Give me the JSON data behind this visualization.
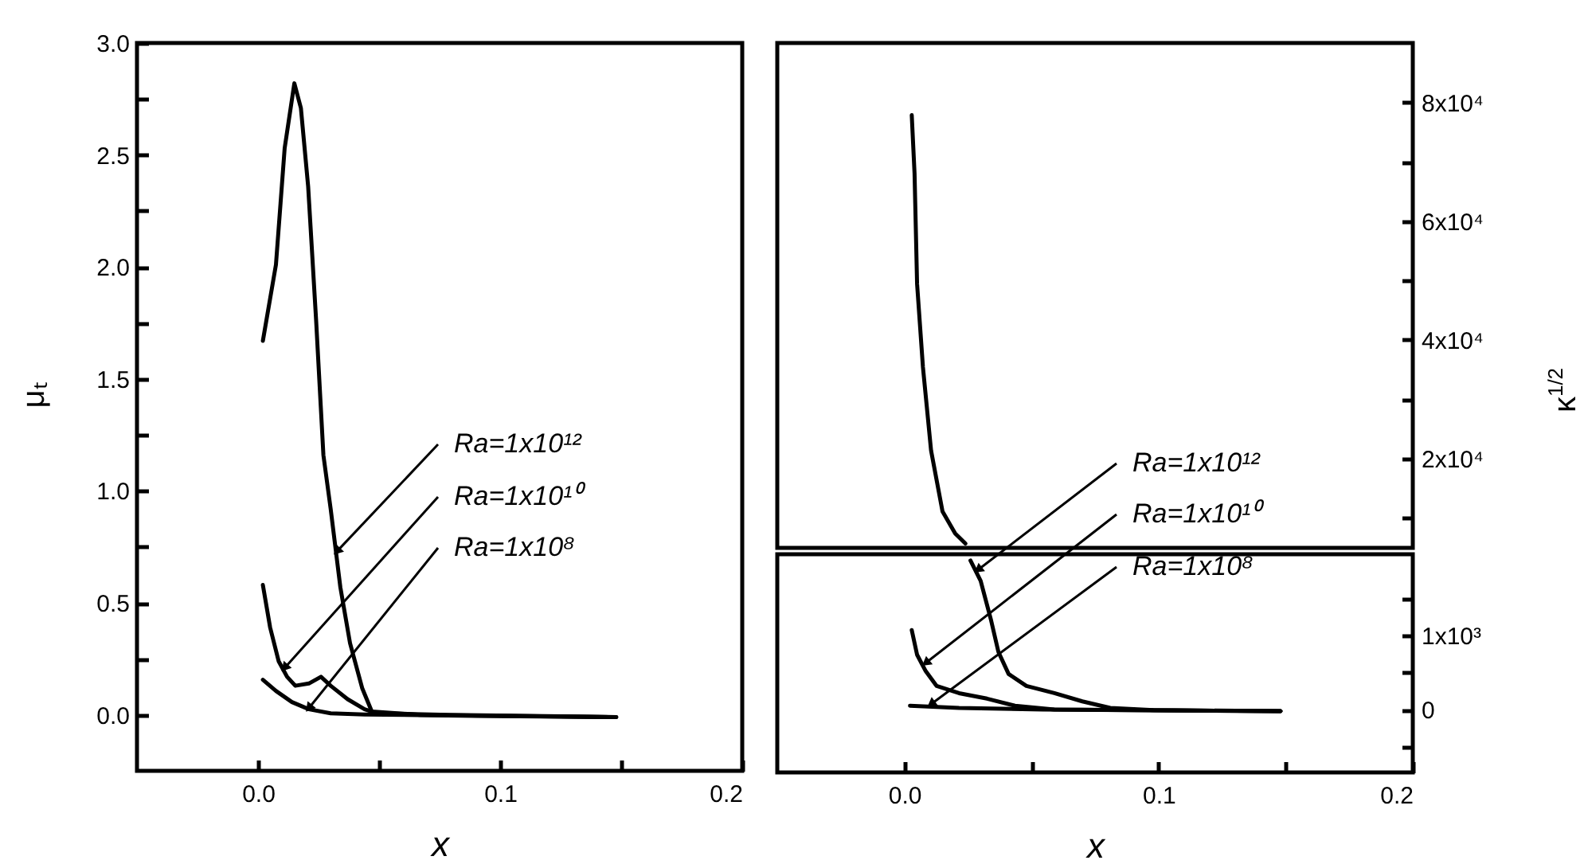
{
  "chart_data": [
    {
      "type": "line",
      "xlabel": "x",
      "ylabel": "μₜ",
      "xlim": [
        -0.05,
        0.2
      ],
      "xticks": [
        {
          "value": 0,
          "label": "0.0"
        },
        {
          "value": 0.05,
          "label": null
        },
        {
          "value": 0.1,
          "label": "0.1"
        },
        {
          "value": 0.15,
          "label": null
        },
        {
          "value": 0.2,
          "label": "0.2"
        }
      ],
      "ylim": [
        -0.25,
        3.0
      ],
      "yticks": [
        {
          "value": 0,
          "label": "0.0"
        },
        {
          "value": 0.25,
          "label": null
        },
        {
          "value": 0.5,
          "label": "0.5"
        },
        {
          "value": 0.75,
          "label": null
        },
        {
          "value": 1,
          "label": "1.0"
        },
        {
          "value": 1.25,
          "label": null
        },
        {
          "value": 1.5,
          "label": "1.5"
        },
        {
          "value": 1.75,
          "label": null
        },
        {
          "value": 2,
          "label": "2.0"
        },
        {
          "value": 2.25,
          "label": null
        },
        {
          "value": 2.5,
          "label": "2.5"
        },
        {
          "value": 2.75,
          "label": null
        },
        {
          "value": 3,
          "label": "3.0"
        }
      ],
      "series": [
        {
          "color": "#000000",
          "x": [
            0.002,
            0.0074,
            0.011,
            0.015,
            0.0177,
            0.0207,
            0.024,
            0.027,
            0.03,
            0.034,
            0.038,
            0.043,
            0.047,
            0.067,
            0.1476
          ],
          "values": [
            1.67,
            2.01,
            2.53,
            2.82,
            2.71,
            2.36,
            1.76,
            1.16,
            0.92,
            0.57,
            0.32,
            0.12,
            0.015,
            0,
            -0.01
          ]
        },
        {
          "color": "#000000",
          "x": [
            0.002,
            0.005,
            0.0085,
            0.012,
            0.0154,
            0.021,
            0.026,
            0.03,
            0.037,
            0.044,
            0.049,
            0.079,
            0.148
          ],
          "values": [
            0.58,
            0.39,
            0.24,
            0.17,
            0.13,
            0.14,
            0.17,
            0.13,
            0.07,
            0.025,
            0.007,
            0,
            -0.01
          ]
        },
        {
          "color": "#000000",
          "x": [
            0.002,
            0.0074,
            0.014,
            0.021,
            0.03,
            0.044,
            0.09,
            0.148
          ],
          "values": [
            0.157,
            0.107,
            0.057,
            0.025,
            0.007,
            0.002,
            -0.005,
            -0.01
          ]
        }
      ],
      "annotations": [
        {
          "text": "Ra=1x10¹²",
          "x": 0.0326,
          "y": 0.73
        },
        {
          "text": "Ra=1x10¹⁰",
          "x": 0.011,
          "y": 0.21
        },
        {
          "text": "Ra=1x10⁸",
          "x": 0.021,
          "y": 0.03
        }
      ]
    },
    {
      "type": "line",
      "ylabel": "κ$^{1/2}$",
      "tick_labels": "y",
      "xlim": [
        -0.05,
        0.2
      ],
      "ylim": [
        5000,
        90000
      ],
      "yticks": [
        {
          "value": 10000,
          "label": null
        },
        {
          "value": 20000,
          "label": "2x10⁴"
        },
        {
          "value": 30000,
          "label": null
        },
        {
          "value": 40000,
          "label": "4x10⁴"
        },
        {
          "value": 50000,
          "label": null
        },
        {
          "value": 60000,
          "label": "6x10⁴"
        },
        {
          "value": 70000,
          "label": null
        },
        {
          "value": 80000,
          "label": "8x10⁴"
        }
      ],
      "series": [
        {
          "color": "#000000",
          "x": [
            0.0029,
            0.004,
            0.005,
            0.0073,
            0.0105,
            0.015,
            0.02,
            0.024
          ],
          "values": [
            77855,
            68070,
            49420,
            35430,
            21400,
            11140,
            7410,
            5730
          ]
        }
      ]
    },
    {
      "type": "line",
      "xlabel": "x",
      "xlim": [
        -0.05,
        0.2
      ],
      "xticks": [
        {
          "value": 0,
          "label": "0.0"
        },
        {
          "value": 0.05,
          "label": null
        },
        {
          "value": 0.1,
          "label": "0.1"
        },
        {
          "value": 0.15,
          "label": null
        },
        {
          "value": 0.2,
          "label": "0.2"
        }
      ],
      "ylim": [
        -850,
        2100
      ],
      "yticks": [
        {
          "value": -500,
          "label": null
        },
        0,
        {
          "value": 500,
          "label": null
        },
        {
          "value": 1000,
          "label": "1x10³"
        },
        {
          "value": 1500,
          "label": null
        }
      ],
      "series": [
        {
          "color": "#000000",
          "x": [
            0.026,
            0.03,
            0.034,
            0.037,
            0.041,
            0.048,
            0.059,
            0.07,
            0.081,
            0.098,
            0.148
          ],
          "values": [
            2015,
            1741,
            1222,
            778,
            481,
            319,
            222,
            111,
            22,
            -7,
            -22
          ]
        },
        {
          "color": "#000000",
          "x": [
            0.0029,
            0.005,
            0.0084,
            0.0127,
            0.0215,
            0.0325,
            0.0435,
            0.059,
            0.148
          ],
          "values": [
            1074,
            741,
            519,
            319,
            222,
            148,
            52,
            0,
            -22
          ]
        },
        {
          "color": "#000000",
          "x": [
            0.0022,
            0.0215,
            0.0545,
            0.148
          ],
          "values": [
            52,
            22,
            0,
            -22
          ]
        }
      ],
      "annotations": [
        {
          "text": "Ra=1x10¹²",
          "x": 0.029,
          "y": 1890
        },
        {
          "text": "Ra=1x10¹⁰",
          "x": 0.0084,
          "y": 630
        },
        {
          "text": "Ra=1x10⁸",
          "x": 0.0105,
          "y": 74
        }
      ]
    }
  ]
}
